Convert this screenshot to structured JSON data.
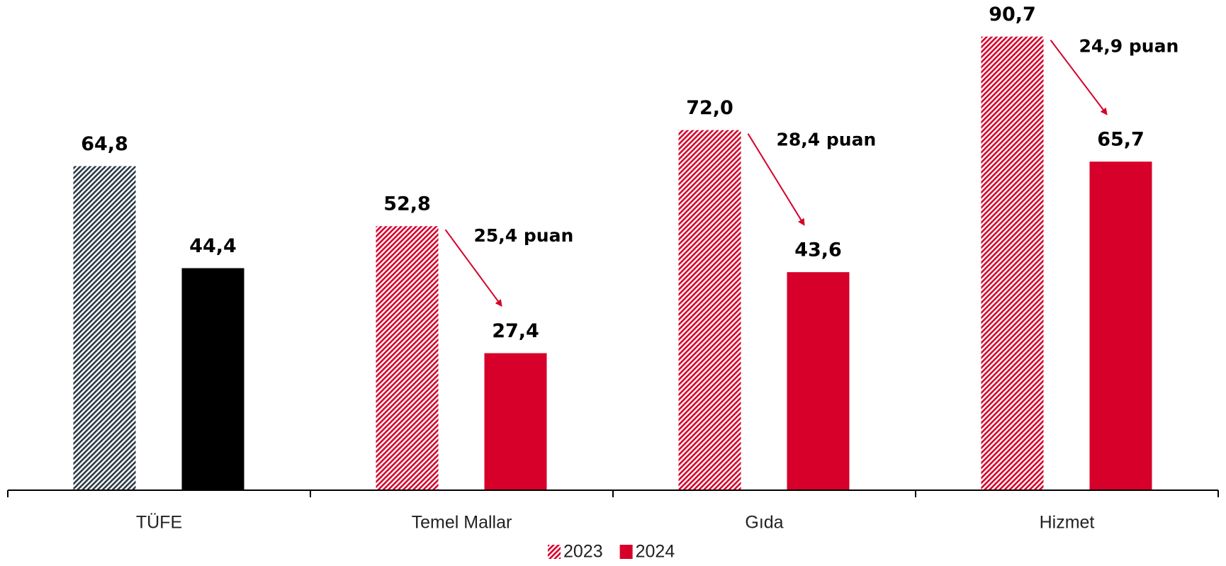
{
  "chart_data": {
    "type": "bar",
    "categories": [
      "TÜFE",
      "Temel Mallar",
      "Gıda",
      "Hizmet"
    ],
    "series": [
      {
        "name": "2023",
        "color": "#d6002a",
        "hatched": true,
        "colors": [
          "#2b3a47",
          "#d6002a",
          "#d6002a",
          "#d6002a"
        ],
        "values": [
          64.8,
          52.8,
          72.0,
          90.7
        ],
        "value_labels": [
          "64,8",
          "52,8",
          "72,0",
          "90,7"
        ]
      },
      {
        "name": "2024",
        "color": "#d6002a",
        "hatched": false,
        "colors": [
          "#000000",
          "#d6002a",
          "#d6002a",
          "#d6002a"
        ],
        "values": [
          44.4,
          27.4,
          43.6,
          65.7
        ],
        "value_labels": [
          "44,4",
          "27,4",
          "43,6",
          "65,7"
        ]
      }
    ],
    "annotations": [
      "25,4 puan",
      "28,4 puan",
      "24,9 puan"
    ],
    "annotation_color": "#d6002a",
    "legend": "bottom"
  }
}
